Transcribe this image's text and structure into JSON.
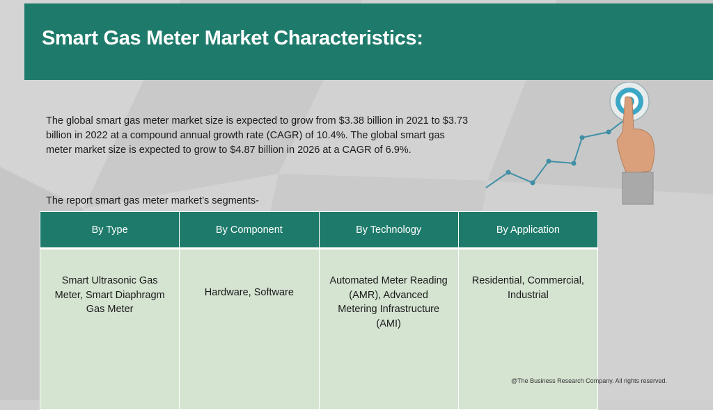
{
  "header": {
    "title": "Smart Gas Meter Market Characteristics:"
  },
  "intro": {
    "text": "The global smart gas meter market size is expected to grow from $3.38 billion in 2021 to $3.73 billion in 2022 at a compound annual growth rate (CAGR) of 10.4%. The global smart gas meter market size is expected to grow to $4.87 billion in 2026 at a CAGR of 6.9%."
  },
  "segments": {
    "label": "The report smart gas meter market’s segments-",
    "headers": [
      "By Type",
      "By Component",
      "By Technology",
      "By Application"
    ],
    "cells": [
      "Smart Ultrasonic Gas Meter, Smart Diaphragm Gas Meter",
      "Hardware, Software",
      "Automated Meter Reading (AMR), Advanced Metering Infrastructure (AMI)",
      "Residential, Commercial, Industrial"
    ]
  },
  "footer": {
    "text": "@The Business Research Company. All rights reserved."
  },
  "colors": {
    "accent": "#1e7b6b",
    "cell_bg": "#d5e3d1",
    "background": "#cfcfcf",
    "line": "#3f8fa6"
  },
  "icons": [
    "growth-line-icon",
    "target-icon",
    "pointing-hand-icon"
  ]
}
